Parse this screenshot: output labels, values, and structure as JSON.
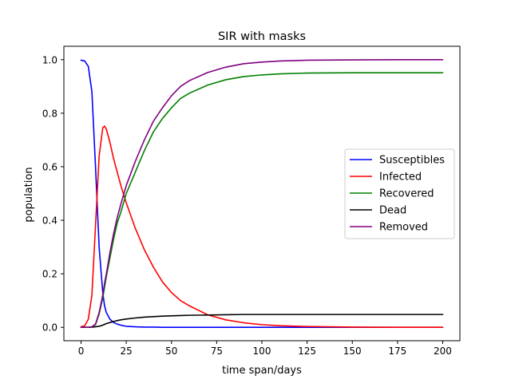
{
  "chart_data": {
    "type": "line",
    "title": "SIR with masks",
    "xlabel": "time span/days",
    "ylabel": "population",
    "xlim": [
      -9.5,
      209.5
    ],
    "ylim": [
      -0.05,
      1.05
    ],
    "xticks": [
      0,
      25,
      50,
      75,
      100,
      125,
      150,
      175,
      200
    ],
    "xtick_labels": [
      "0",
      "25",
      "50",
      "75",
      "100",
      "125",
      "150",
      "175",
      "200"
    ],
    "yticks": [
      0.0,
      0.2,
      0.4,
      0.6,
      0.8,
      1.0
    ],
    "ytick_labels": [
      "0.0",
      "0.2",
      "0.4",
      "0.6",
      "0.8",
      "1.0"
    ],
    "grid": false,
    "legend_position": "center-right",
    "x": [
      0,
      2,
      4,
      6,
      8,
      10,
      12,
      13,
      14,
      16,
      18,
      20,
      22,
      25,
      30,
      35,
      40,
      45,
      50,
      55,
      60,
      70,
      80,
      90,
      100,
      110,
      125,
      150,
      175,
      200
    ],
    "series": [
      {
        "name": "Susceptibles",
        "color": "#0000ff",
        "values": [
          0.998,
          0.995,
          0.975,
          0.88,
          0.6,
          0.3,
          0.13,
          0.08,
          0.055,
          0.03,
          0.018,
          0.012,
          0.008,
          0.004,
          0.002,
          0.001,
          0.001,
          0.0,
          0.0,
          0.0,
          0.0,
          0.0,
          0.0,
          0.0,
          0.0,
          0.0,
          0.0,
          0.0,
          0.0,
          0.0
        ]
      },
      {
        "name": "Infected",
        "color": "#ff0000",
        "values": [
          0.002,
          0.006,
          0.03,
          0.12,
          0.38,
          0.64,
          0.745,
          0.752,
          0.74,
          0.69,
          0.63,
          0.58,
          0.53,
          0.465,
          0.37,
          0.29,
          0.225,
          0.17,
          0.13,
          0.1,
          0.08,
          0.047,
          0.028,
          0.017,
          0.01,
          0.006,
          0.003,
          0.001,
          0.0,
          0.0
        ]
      },
      {
        "name": "Recovered",
        "color": "#008000",
        "values": [
          0.0,
          0.0,
          0.0,
          0.001,
          0.01,
          0.05,
          0.11,
          0.15,
          0.19,
          0.26,
          0.33,
          0.39,
          0.43,
          0.5,
          0.58,
          0.66,
          0.73,
          0.78,
          0.82,
          0.855,
          0.875,
          0.905,
          0.925,
          0.937,
          0.943,
          0.947,
          0.95,
          0.951,
          0.951,
          0.951
        ]
      },
      {
        "name": "Dead",
        "color": "#000000",
        "values": [
          0.0,
          0.0,
          0.0,
          0.001,
          0.002,
          0.004,
          0.008,
          0.011,
          0.014,
          0.018,
          0.022,
          0.025,
          0.028,
          0.031,
          0.035,
          0.038,
          0.04,
          0.042,
          0.043,
          0.044,
          0.045,
          0.046,
          0.047,
          0.048,
          0.048,
          0.048,
          0.048,
          0.048,
          0.048,
          0.048
        ]
      },
      {
        "name": "Removed",
        "color": "#800080",
        "values": [
          0.0,
          0.0,
          0.0,
          0.002,
          0.012,
          0.055,
          0.12,
          0.165,
          0.2,
          0.28,
          0.35,
          0.41,
          0.46,
          0.53,
          0.62,
          0.7,
          0.77,
          0.82,
          0.865,
          0.9,
          0.922,
          0.952,
          0.972,
          0.985,
          0.991,
          0.995,
          0.998,
          0.999,
          1.0,
          1.0
        ]
      }
    ]
  }
}
